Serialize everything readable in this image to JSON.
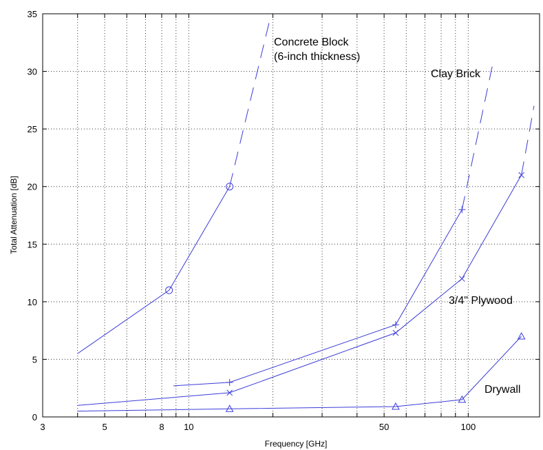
{
  "chart_data": {
    "type": "line",
    "xlabel": "Frequency [GHz]",
    "ylabel": "Total Attenuation [dB]",
    "x_scale": "log",
    "xlim": [
      3,
      180
    ],
    "ylim": [
      0,
      35
    ],
    "x_ticks": [
      3,
      4,
      5,
      6,
      7,
      8,
      9,
      10,
      20,
      30,
      40,
      50,
      60,
      70,
      80,
      90,
      100
    ],
    "x_tick_labels": [
      {
        "value": 3,
        "label": "3"
      },
      {
        "value": 5,
        "label": "5"
      },
      {
        "value": 8,
        "label": "8"
      },
      {
        "value": 10,
        "label": "10"
      },
      {
        "value": 50,
        "label": "50"
      },
      {
        "value": 100,
        "label": "100"
      }
    ],
    "y_ticks": [
      0,
      5,
      10,
      15,
      20,
      25,
      30,
      35
    ],
    "y_tick_labels": [
      "0",
      "5",
      "10",
      "15",
      "20",
      "25",
      "30",
      "35"
    ],
    "grid": true,
    "line_color": "#3b3bd9",
    "series": [
      {
        "name": "Concrete Block (6-inch thickness)",
        "label_lines": [
          "Concrete Block",
          "(6-inch thickness)"
        ],
        "marker": "circle",
        "x": [
          4,
          8.5,
          14
        ],
        "y": [
          5.5,
          11,
          20
        ],
        "marked": [
          false,
          true,
          true
        ],
        "extrapolation": {
          "x": [
            14,
            19.5
          ],
          "y": [
            20,
            34.5
          ]
        }
      },
      {
        "name": "Clay Brick",
        "label_lines": [
          "Clay Brick"
        ],
        "marker": "plus",
        "x": [
          8.8,
          14,
          55,
          95
        ],
        "y": [
          2.7,
          3,
          8,
          18
        ],
        "marked": [
          false,
          true,
          true,
          true
        ],
        "extrapolation": {
          "x": [
            95,
            122
          ],
          "y": [
            18,
            30.5
          ]
        }
      },
      {
        "name": "3/4\" Plywood",
        "label_lines": [
          "3/4\" Plywood"
        ],
        "marker": "x",
        "x": [
          4,
          14,
          55,
          95,
          155
        ],
        "y": [
          1,
          2.1,
          7.3,
          12,
          21
        ],
        "marked": [
          false,
          true,
          true,
          true,
          true
        ],
        "extrapolation": {
          "x": [
            155,
            172
          ],
          "y": [
            21,
            27
          ]
        }
      },
      {
        "name": "Drywall",
        "label_lines": [
          "Drywall"
        ],
        "marker": "triangle",
        "x": [
          4,
          14,
          55,
          95,
          155
        ],
        "y": [
          0.5,
          0.7,
          0.9,
          1.5,
          7
        ],
        "marked": [
          false,
          true,
          true,
          true,
          true
        ],
        "extrapolation": null
      }
    ]
  }
}
